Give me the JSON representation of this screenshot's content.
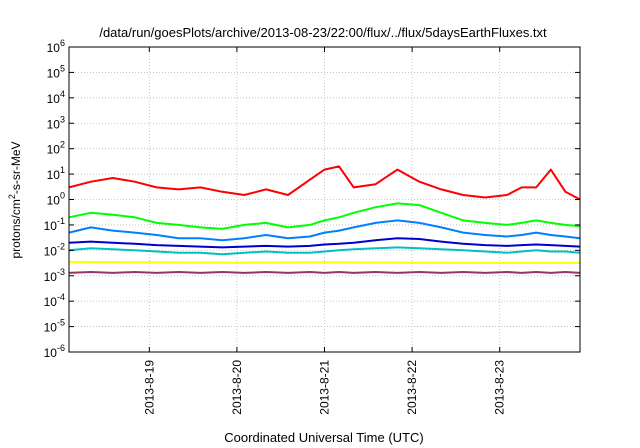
{
  "chart_data": {
    "type": "line",
    "title": "/data/run/goesPlots/archive/2013-08-23/22:00/flux/../flux/5daysEarthFluxes.txt",
    "xlabel": "Coordinated Universal Time (UTC)",
    "ylabel_main": "protons/cm",
    "ylabel_sup": "2",
    "ylabel_rest": "-s-sr-MeV",
    "y_scale": "log",
    "ylim": [
      1e-06,
      1000000.0
    ],
    "xlim": [
      "2013-08-18 02:00",
      "2013-08-23 22:00"
    ],
    "grid": true,
    "x_ticks": [
      {
        "value": "2013-08-19 00:00",
        "label": "2013-8-19"
      },
      {
        "value": "2013-08-20 00:00",
        "label": "2013-8-20"
      },
      {
        "value": "2013-08-21 00:00",
        "label": "2013-8-21"
      },
      {
        "value": "2013-08-22 00:00",
        "label": "2013-8-22"
      },
      {
        "value": "2013-08-23 00:00",
        "label": "2013-8-23"
      }
    ],
    "y_ticks": [
      {
        "value": 1e-06,
        "base": "10",
        "exp": "-6"
      },
      {
        "value": 1e-05,
        "base": "10",
        "exp": "-5"
      },
      {
        "value": 0.0001,
        "base": "10",
        "exp": "-4"
      },
      {
        "value": 0.001,
        "base": "10",
        "exp": "-3"
      },
      {
        "value": 0.01,
        "base": "10",
        "exp": "-2"
      },
      {
        "value": 0.1,
        "base": "10",
        "exp": "-1"
      },
      {
        "value": 1,
        "base": "10",
        "exp": "0"
      },
      {
        "value": 10,
        "base": "10",
        "exp": "1"
      },
      {
        "value": 100,
        "base": "10",
        "exp": "2"
      },
      {
        "value": 1000,
        "base": "10",
        "exp": "3"
      },
      {
        "value": 10000,
        "base": "10",
        "exp": "4"
      },
      {
        "value": 100000,
        "base": "10",
        "exp": "5"
      },
      {
        "value": 1000000,
        "base": "10",
        "exp": "6"
      }
    ],
    "series": [
      {
        "color": "#ff0000",
        "x": [
          "2013-08-18 02:00",
          "2013-08-18 08:00",
          "2013-08-18 14:00",
          "2013-08-18 20:00",
          "2013-08-19 02:00",
          "2013-08-19 08:00",
          "2013-08-19 14:00",
          "2013-08-19 20:00",
          "2013-08-20 02:00",
          "2013-08-20 08:00",
          "2013-08-20 14:00",
          "2013-08-20 20:00",
          "2013-08-21 00:00",
          "2013-08-21 04:00",
          "2013-08-21 08:00",
          "2013-08-21 14:00",
          "2013-08-21 20:00",
          "2013-08-22 02:00",
          "2013-08-22 08:00",
          "2013-08-22 14:00",
          "2013-08-22 20:00",
          "2013-08-23 02:00",
          "2013-08-23 06:00",
          "2013-08-23 10:00",
          "2013-08-23 14:00",
          "2013-08-23 18:00",
          "2013-08-23 22:00"
        ],
        "y": [
          3,
          5,
          7,
          5,
          3,
          2.5,
          3,
          2,
          1.5,
          2.5,
          1.5,
          6,
          15,
          20,
          3,
          4,
          15,
          5,
          2.5,
          1.5,
          1.2,
          1.5,
          3,
          3,
          15,
          2,
          1
        ]
      },
      {
        "color": "#00ff00",
        "x": [
          "2013-08-18 02:00",
          "2013-08-18 08:00",
          "2013-08-18 14:00",
          "2013-08-18 20:00",
          "2013-08-19 02:00",
          "2013-08-19 08:00",
          "2013-08-19 14:00",
          "2013-08-19 20:00",
          "2013-08-20 02:00",
          "2013-08-20 08:00",
          "2013-08-20 14:00",
          "2013-08-20 20:00",
          "2013-08-21 00:00",
          "2013-08-21 04:00",
          "2013-08-21 08:00",
          "2013-08-21 14:00",
          "2013-08-21 20:00",
          "2013-08-22 02:00",
          "2013-08-22 08:00",
          "2013-08-22 14:00",
          "2013-08-22 20:00",
          "2013-08-23 02:00",
          "2013-08-23 06:00",
          "2013-08-23 10:00",
          "2013-08-23 14:00",
          "2013-08-23 18:00",
          "2013-08-23 22:00"
        ],
        "y": [
          0.2,
          0.3,
          0.25,
          0.2,
          0.12,
          0.1,
          0.08,
          0.07,
          0.1,
          0.12,
          0.08,
          0.1,
          0.15,
          0.2,
          0.3,
          0.5,
          0.7,
          0.6,
          0.3,
          0.15,
          0.12,
          0.1,
          0.12,
          0.15,
          0.12,
          0.1,
          0.09
        ]
      },
      {
        "color": "#0080ff",
        "x": [
          "2013-08-18 02:00",
          "2013-08-18 08:00",
          "2013-08-18 14:00",
          "2013-08-18 20:00",
          "2013-08-19 02:00",
          "2013-08-19 08:00",
          "2013-08-19 14:00",
          "2013-08-19 20:00",
          "2013-08-20 02:00",
          "2013-08-20 08:00",
          "2013-08-20 14:00",
          "2013-08-20 20:00",
          "2013-08-21 00:00",
          "2013-08-21 04:00",
          "2013-08-21 08:00",
          "2013-08-21 14:00",
          "2013-08-21 20:00",
          "2013-08-22 02:00",
          "2013-08-22 08:00",
          "2013-08-22 14:00",
          "2013-08-22 20:00",
          "2013-08-23 02:00",
          "2013-08-23 06:00",
          "2013-08-23 10:00",
          "2013-08-23 14:00",
          "2013-08-23 18:00",
          "2013-08-23 22:00"
        ],
        "y": [
          0.05,
          0.08,
          0.06,
          0.05,
          0.04,
          0.03,
          0.03,
          0.025,
          0.03,
          0.04,
          0.03,
          0.035,
          0.05,
          0.06,
          0.08,
          0.12,
          0.15,
          0.12,
          0.08,
          0.05,
          0.04,
          0.035,
          0.04,
          0.05,
          0.04,
          0.035,
          0.03
        ]
      },
      {
        "color": "#0000cc",
        "x": [
          "2013-08-18 02:00",
          "2013-08-18 08:00",
          "2013-08-18 14:00",
          "2013-08-18 20:00",
          "2013-08-19 02:00",
          "2013-08-19 08:00",
          "2013-08-19 14:00",
          "2013-08-19 20:00",
          "2013-08-20 02:00",
          "2013-08-20 08:00",
          "2013-08-20 14:00",
          "2013-08-20 20:00",
          "2013-08-21 00:00",
          "2013-08-21 04:00",
          "2013-08-21 08:00",
          "2013-08-21 14:00",
          "2013-08-21 20:00",
          "2013-08-22 02:00",
          "2013-08-22 08:00",
          "2013-08-22 14:00",
          "2013-08-22 20:00",
          "2013-08-23 02:00",
          "2013-08-23 06:00",
          "2013-08-23 10:00",
          "2013-08-23 14:00",
          "2013-08-23 18:00",
          "2013-08-23 22:00"
        ],
        "y": [
          0.02,
          0.022,
          0.02,
          0.018,
          0.016,
          0.015,
          0.014,
          0.013,
          0.014,
          0.015,
          0.014,
          0.015,
          0.017,
          0.018,
          0.02,
          0.025,
          0.03,
          0.028,
          0.022,
          0.018,
          0.016,
          0.015,
          0.016,
          0.017,
          0.016,
          0.015,
          0.014
        ]
      },
      {
        "color": "#00c0c0",
        "x": [
          "2013-08-18 02:00",
          "2013-08-18 08:00",
          "2013-08-18 14:00",
          "2013-08-18 20:00",
          "2013-08-19 02:00",
          "2013-08-19 08:00",
          "2013-08-19 14:00",
          "2013-08-19 20:00",
          "2013-08-20 02:00",
          "2013-08-20 08:00",
          "2013-08-20 14:00",
          "2013-08-20 20:00",
          "2013-08-21 00:00",
          "2013-08-21 04:00",
          "2013-08-21 08:00",
          "2013-08-21 14:00",
          "2013-08-21 20:00",
          "2013-08-22 02:00",
          "2013-08-22 08:00",
          "2013-08-22 14:00",
          "2013-08-22 20:00",
          "2013-08-23 02:00",
          "2013-08-23 06:00",
          "2013-08-23 10:00",
          "2013-08-23 14:00",
          "2013-08-23 18:00",
          "2013-08-23 22:00"
        ],
        "y": [
          0.01,
          0.012,
          0.011,
          0.01,
          0.009,
          0.008,
          0.008,
          0.007,
          0.008,
          0.009,
          0.008,
          0.008,
          0.009,
          0.01,
          0.011,
          0.012,
          0.013,
          0.012,
          0.011,
          0.01,
          0.009,
          0.008,
          0.009,
          0.01,
          0.009,
          0.009,
          0.008
        ]
      },
      {
        "color": "#ffff00",
        "x": [
          "2013-08-18 02:00",
          "2013-08-19 00:00",
          "2013-08-20 00:00",
          "2013-08-21 00:00",
          "2013-08-22 00:00",
          "2013-08-23 00:00",
          "2013-08-23 22:00"
        ],
        "y": [
          0.0035,
          0.0034,
          0.0033,
          0.0034,
          0.0033,
          0.0032,
          0.0032
        ]
      },
      {
        "color": "#993366",
        "x": [
          "2013-08-18 02:00",
          "2013-08-18 08:00",
          "2013-08-18 14:00",
          "2013-08-18 20:00",
          "2013-08-19 02:00",
          "2013-08-19 08:00",
          "2013-08-19 14:00",
          "2013-08-19 20:00",
          "2013-08-20 02:00",
          "2013-08-20 08:00",
          "2013-08-20 14:00",
          "2013-08-20 20:00",
          "2013-08-21 00:00",
          "2013-08-21 04:00",
          "2013-08-21 08:00",
          "2013-08-21 14:00",
          "2013-08-21 20:00",
          "2013-08-22 02:00",
          "2013-08-22 08:00",
          "2013-08-22 14:00",
          "2013-08-22 20:00",
          "2013-08-23 02:00",
          "2013-08-23 06:00",
          "2013-08-23 10:00",
          "2013-08-23 14:00",
          "2013-08-23 18:00",
          "2013-08-23 22:00"
        ],
        "y": [
          0.0013,
          0.0014,
          0.0013,
          0.0014,
          0.0013,
          0.0014,
          0.0013,
          0.0014,
          0.0013,
          0.0014,
          0.0013,
          0.0014,
          0.0013,
          0.0014,
          0.0013,
          0.0014,
          0.0013,
          0.0014,
          0.0013,
          0.0014,
          0.0013,
          0.0014,
          0.0013,
          0.0014,
          0.0013,
          0.0014,
          0.0013
        ]
      }
    ]
  }
}
